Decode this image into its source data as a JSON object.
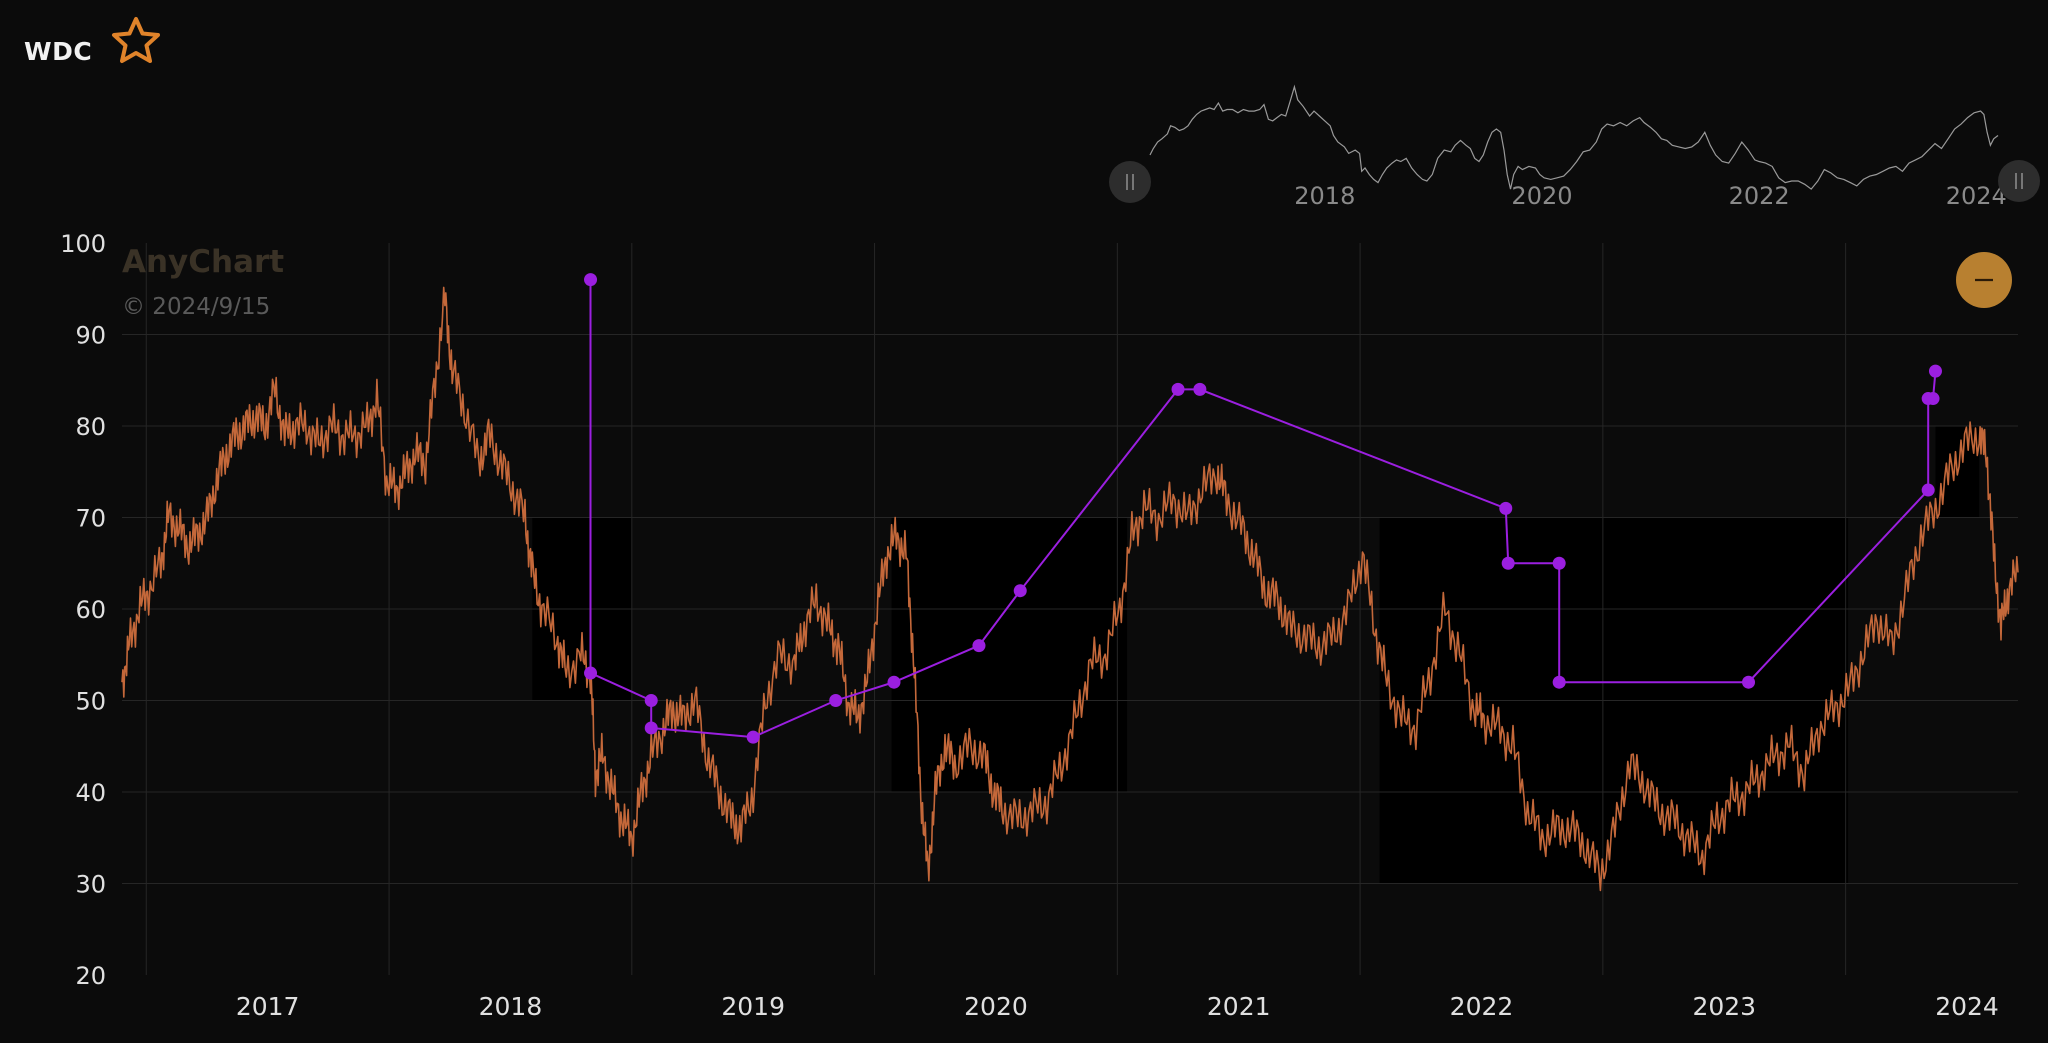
{
  "header": {
    "ticker": "WDC",
    "star_icon": "star-outline-icon",
    "accent": "#e0832a"
  },
  "watermark": {
    "title": "AnyChart",
    "date": "© 2024/9/15"
  },
  "zoom_button": {
    "icon": "minus-icon",
    "color": "#b88030"
  },
  "navigator": {
    "ticks": [
      {
        "label": "2018",
        "x": 2018.0
      },
      {
        "label": "2020",
        "x": 2020.0
      },
      {
        "label": "2022",
        "x": 2022.0
      },
      {
        "label": "2024",
        "x": 2024.0
      }
    ]
  },
  "chart_data": {
    "type": "line",
    "title": "",
    "ylim": [
      20,
      100
    ],
    "yticks": [
      20,
      30,
      40,
      50,
      60,
      70,
      80,
      90,
      100
    ],
    "xlim": [
      2016.39,
      2024.2
    ],
    "xticks": [
      {
        "label": "2017",
        "x": 2016.99
      },
      {
        "label": "2018",
        "x": 2017.99
      },
      {
        "label": "2019",
        "x": 2018.99
      },
      {
        "label": "2020",
        "x": 2019.99
      },
      {
        "label": "2021",
        "x": 2020.99
      },
      {
        "label": "2022",
        "x": 2021.99
      },
      {
        "label": "2023",
        "x": 2022.99
      },
      {
        "label": "2024",
        "x": 2023.99
      }
    ],
    "grid": true,
    "colors": {
      "price": "#c4683a",
      "analyst": "#9b1fe0",
      "band": "#000000",
      "background": "#0b0b0b"
    },
    "series": [
      {
        "type": "line",
        "values": [
          [
            2016.39,
            52
          ],
          [
            2016.42,
            56
          ],
          [
            2016.46,
            60
          ],
          [
            2016.5,
            62
          ],
          [
            2016.55,
            65
          ],
          [
            2016.58,
            70
          ],
          [
            2016.62,
            69
          ],
          [
            2016.66,
            67
          ],
          [
            2016.7,
            68
          ],
          [
            2016.74,
            70
          ],
          [
            2016.78,
            74
          ],
          [
            2016.82,
            77
          ],
          [
            2016.86,
            79
          ],
          [
            2016.9,
            80
          ],
          [
            2016.94,
            81
          ],
          [
            2016.98,
            80
          ],
          [
            2017.02,
            84
          ],
          [
            2017.06,
            79
          ],
          [
            2017.1,
            80
          ],
          [
            2017.15,
            80
          ],
          [
            2017.2,
            78
          ],
          [
            2017.25,
            80
          ],
          [
            2017.3,
            79
          ],
          [
            2017.35,
            79
          ],
          [
            2017.4,
            80
          ],
          [
            2017.44,
            83
          ],
          [
            2017.48,
            74
          ],
          [
            2017.52,
            73
          ],
          [
            2017.56,
            75
          ],
          [
            2017.6,
            77
          ],
          [
            2017.64,
            76
          ],
          [
            2017.68,
            85
          ],
          [
            2017.72,
            94
          ],
          [
            2017.75,
            86
          ],
          [
            2017.8,
            82
          ],
          [
            2017.86,
            76
          ],
          [
            2017.9,
            79
          ],
          [
            2017.95,
            76
          ],
          [
            2018.0,
            73
          ],
          [
            2018.05,
            70
          ],
          [
            2018.08,
            64
          ],
          [
            2018.12,
            60
          ],
          [
            2018.18,
            57
          ],
          [
            2018.22,
            53
          ],
          [
            2018.28,
            55
          ],
          [
            2018.32,
            53
          ],
          [
            2018.34,
            42
          ],
          [
            2018.37,
            44
          ],
          [
            2018.41,
            40
          ],
          [
            2018.45,
            37
          ],
          [
            2018.49,
            35
          ],
          [
            2018.53,
            40
          ],
          [
            2018.57,
            44
          ],
          [
            2018.62,
            47
          ],
          [
            2018.66,
            49
          ],
          [
            2018.7,
            48
          ],
          [
            2018.75,
            50
          ],
          [
            2018.8,
            44
          ],
          [
            2018.85,
            40
          ],
          [
            2018.9,
            37
          ],
          [
            2018.94,
            36
          ],
          [
            2018.99,
            40
          ],
          [
            2019.04,
            50
          ],
          [
            2019.1,
            55
          ],
          [
            2019.16,
            54
          ],
          [
            2019.2,
            58
          ],
          [
            2019.25,
            61
          ],
          [
            2019.3,
            58
          ],
          [
            2019.34,
            56
          ],
          [
            2019.38,
            50
          ],
          [
            2019.42,
            48
          ],
          [
            2019.46,
            52
          ],
          [
            2019.5,
            60
          ],
          [
            2019.54,
            66
          ],
          [
            2019.58,
            68
          ],
          [
            2019.62,
            66
          ],
          [
            2019.65,
            55
          ],
          [
            2019.68,
            40
          ],
          [
            2019.71,
            31
          ],
          [
            2019.74,
            40
          ],
          [
            2019.78,
            45
          ],
          [
            2019.82,
            43
          ],
          [
            2019.88,
            45
          ],
          [
            2019.94,
            44
          ],
          [
            2019.98,
            40
          ],
          [
            2020.02,
            38
          ],
          [
            2020.08,
            37
          ],
          [
            2020.14,
            38
          ],
          [
            2020.2,
            39
          ],
          [
            2020.26,
            43
          ],
          [
            2020.32,
            48
          ],
          [
            2020.38,
            54
          ],
          [
            2020.44,
            55
          ],
          [
            2020.5,
            60
          ],
          [
            2020.55,
            68
          ],
          [
            2020.6,
            71
          ],
          [
            2020.66,
            70
          ],
          [
            2020.72,
            72
          ],
          [
            2020.78,
            70
          ],
          [
            2020.84,
            73
          ],
          [
            2020.9,
            75
          ],
          [
            2020.94,
            72
          ],
          [
            2021.0,
            69
          ],
          [
            2021.05,
            66
          ],
          [
            2021.1,
            62
          ],
          [
            2021.15,
            61
          ],
          [
            2021.2,
            58
          ],
          [
            2021.26,
            57
          ],
          [
            2021.32,
            56
          ],
          [
            2021.38,
            57
          ],
          [
            2021.44,
            60
          ],
          [
            2021.5,
            66
          ],
          [
            2021.55,
            58
          ],
          [
            2021.6,
            52
          ],
          [
            2021.66,
            48
          ],
          [
            2021.72,
            47
          ],
          [
            2021.78,
            53
          ],
          [
            2021.84,
            60
          ],
          [
            2021.9,
            55
          ],
          [
            2021.96,
            49
          ],
          [
            2022.0,
            48
          ],
          [
            2022.06,
            47
          ],
          [
            2022.12,
            45
          ],
          [
            2022.18,
            38
          ],
          [
            2022.24,
            35
          ],
          [
            2022.3,
            36
          ],
          [
            2022.36,
            36
          ],
          [
            2022.42,
            34
          ],
          [
            2022.48,
            31
          ],
          [
            2022.54,
            36
          ],
          [
            2022.6,
            43
          ],
          [
            2022.66,
            41
          ],
          [
            2022.72,
            38
          ],
          [
            2022.78,
            37
          ],
          [
            2022.84,
            35
          ],
          [
            2022.9,
            33
          ],
          [
            2022.96,
            37
          ],
          [
            2023.02,
            39
          ],
          [
            2023.08,
            40
          ],
          [
            2023.14,
            42
          ],
          [
            2023.2,
            44
          ],
          [
            2023.26,
            45
          ],
          [
            2023.32,
            42
          ],
          [
            2023.38,
            47
          ],
          [
            2023.44,
            49
          ],
          [
            2023.5,
            51
          ],
          [
            2023.56,
            55
          ],
          [
            2023.62,
            59
          ],
          [
            2023.68,
            56
          ],
          [
            2023.74,
            62
          ],
          [
            2023.8,
            68
          ],
          [
            2023.86,
            71
          ],
          [
            2023.92,
            75
          ],
          [
            2023.98,
            78
          ],
          [
            2024.04,
            79
          ],
          [
            2024.07,
            77
          ],
          [
            2024.1,
            66
          ],
          [
            2024.13,
            58
          ],
          [
            2024.16,
            62
          ],
          [
            2024.2,
            64
          ]
        ]
      },
      {
        "type": "step-markers",
        "values": [
          [
            2018.32,
            96
          ],
          [
            2018.32,
            53
          ],
          [
            2018.57,
            50
          ],
          [
            2018.57,
            47
          ],
          [
            2018.99,
            46
          ],
          [
            2019.33,
            50
          ],
          [
            2019.57,
            52
          ],
          [
            2019.92,
            56
          ],
          [
            2020.09,
            62
          ],
          [
            2020.74,
            84
          ],
          [
            2020.83,
            84
          ],
          [
            2022.09,
            71
          ],
          [
            2022.1,
            65
          ],
          [
            2022.31,
            65
          ],
          [
            2022.31,
            52
          ],
          [
            2023.09,
            52
          ],
          [
            2023.83,
            73
          ],
          [
            2023.83,
            83
          ],
          [
            2023.85,
            83
          ],
          [
            2023.86,
            86
          ]
        ]
      }
    ],
    "bands": [
      {
        "x0": 2018.08,
        "x1": 2018.49,
        "y0": 50,
        "y1": 70
      },
      {
        "x0": 2019.56,
        "x1": 2020.53,
        "y0": 40,
        "y1": 70
      },
      {
        "x0": 2021.57,
        "x1": 2023.5,
        "y0": 30,
        "y1": 70
      },
      {
        "x0": 2023.86,
        "x1": 2024.04,
        "y0": 70,
        "y1": 80
      }
    ]
  }
}
